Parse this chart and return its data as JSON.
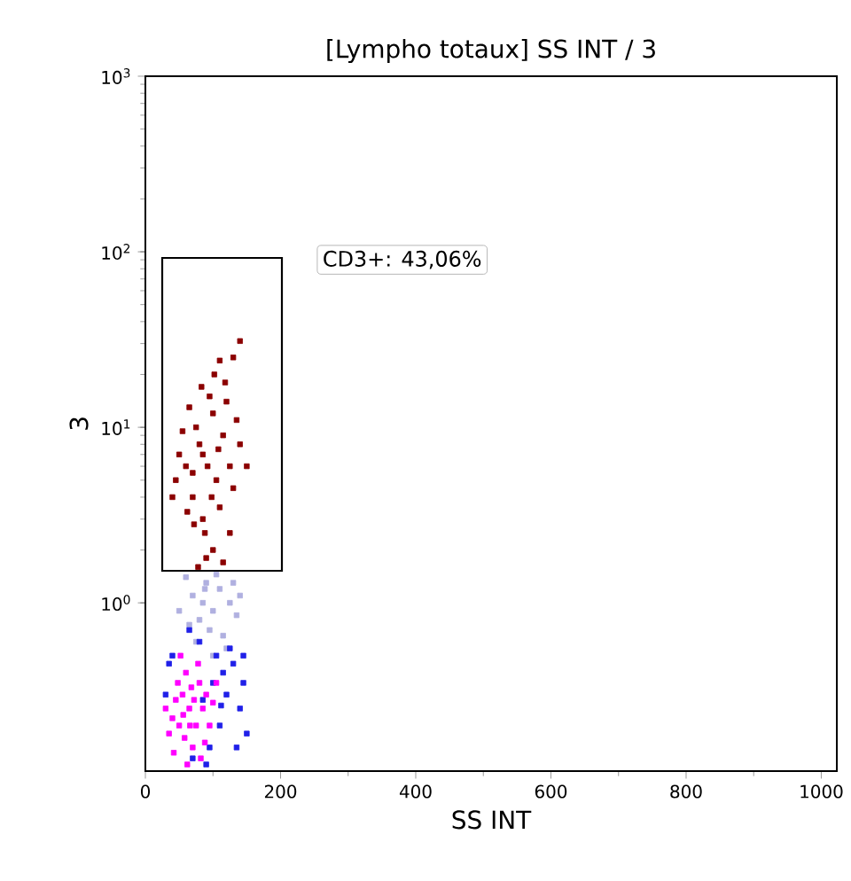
{
  "chart_data": {
    "type": "scatter",
    "title": "[Lympho totaux] SS INT / 3",
    "xlabel": "SS INT",
    "ylabel": "3",
    "xlim": [
      0,
      1023
    ],
    "xticks": [
      0,
      200,
      400,
      600,
      800,
      1000
    ],
    "ylim": [
      0.11,
      1000
    ],
    "yticks": [
      {
        "value": 1,
        "label": "10$^{0}$"
      },
      {
        "value": 10,
        "label": "10$^{1}$"
      },
      {
        "value": 100,
        "label": "10$^{2}$"
      },
      {
        "value": 1000,
        "label": "10$^{3}$"
      }
    ],
    "log": "y",
    "grid": false,
    "marker": "square",
    "annotations": [
      "CD3+: 43,06%"
    ],
    "series": [
      {
        "color": "#8b0000",
        "x": [
          92,
          80,
          105,
          70,
          115,
          60,
          125,
          85,
          100,
          75,
          110,
          130,
          50,
          140,
          95,
          65,
          120,
          88,
          100,
          72,
          135,
          45,
          55,
          118,
          102,
          83,
          130,
          140,
          110,
          90,
          78,
          115,
          150,
          40,
          62,
          98,
          85,
          108,
          70,
          125
        ],
        "values": [
          6,
          8,
          5,
          4,
          9,
          6,
          6,
          3,
          12,
          10,
          3.5,
          4.5,
          7,
          8,
          15,
          13,
          14,
          2.5,
          2,
          2.8,
          11,
          5,
          9.5,
          18,
          20,
          17,
          25,
          31,
          24,
          1.8,
          1.6,
          1.7,
          6,
          4,
          3.3,
          4,
          7,
          7.5,
          5.5,
          2.5
        ]
      },
      {
        "color": "#b0b0e0",
        "x": [
          90,
          110,
          70,
          100,
          125,
          80,
          60,
          135,
          95,
          115,
          75,
          105,
          85,
          130,
          65,
          120,
          140,
          50,
          100,
          88
        ],
        "values": [
          1.3,
          1.2,
          1.1,
          0.9,
          1.0,
          0.8,
          1.4,
          0.85,
          0.7,
          0.65,
          0.6,
          1.45,
          1.0,
          1.3,
          0.75,
          0.55,
          1.1,
          0.9,
          0.5,
          1.2
        ]
      },
      {
        "color": "#2020e8",
        "x": [
          40,
          145,
          100,
          120,
          140,
          130,
          80,
          110,
          95,
          70,
          112,
          30,
          150,
          115,
          125,
          85,
          105,
          145,
          65,
          35,
          90,
          135
        ],
        "values": [
          0.5,
          0.5,
          0.35,
          0.3,
          0.25,
          0.45,
          0.6,
          0.2,
          0.15,
          0.13,
          0.26,
          0.3,
          0.18,
          0.4,
          0.55,
          0.28,
          0.5,
          0.35,
          0.7,
          0.45,
          0.12,
          0.15
        ]
      },
      {
        "color": "#ff00ff",
        "x": [
          65,
          55,
          75,
          50,
          80,
          60,
          45,
          70,
          85,
          40,
          90,
          58,
          68,
          78,
          48,
          62,
          95,
          35,
          100,
          52,
          72,
          88,
          30,
          66,
          56,
          105,
          42,
          82
        ],
        "values": [
          0.25,
          0.3,
          0.2,
          0.2,
          0.35,
          0.4,
          0.28,
          0.15,
          0.25,
          0.22,
          0.3,
          0.17,
          0.33,
          0.45,
          0.35,
          0.12,
          0.2,
          0.18,
          0.27,
          0.5,
          0.28,
          0.16,
          0.25,
          0.2,
          0.23,
          0.35,
          0.14,
          0.13
        ]
      }
    ]
  }
}
